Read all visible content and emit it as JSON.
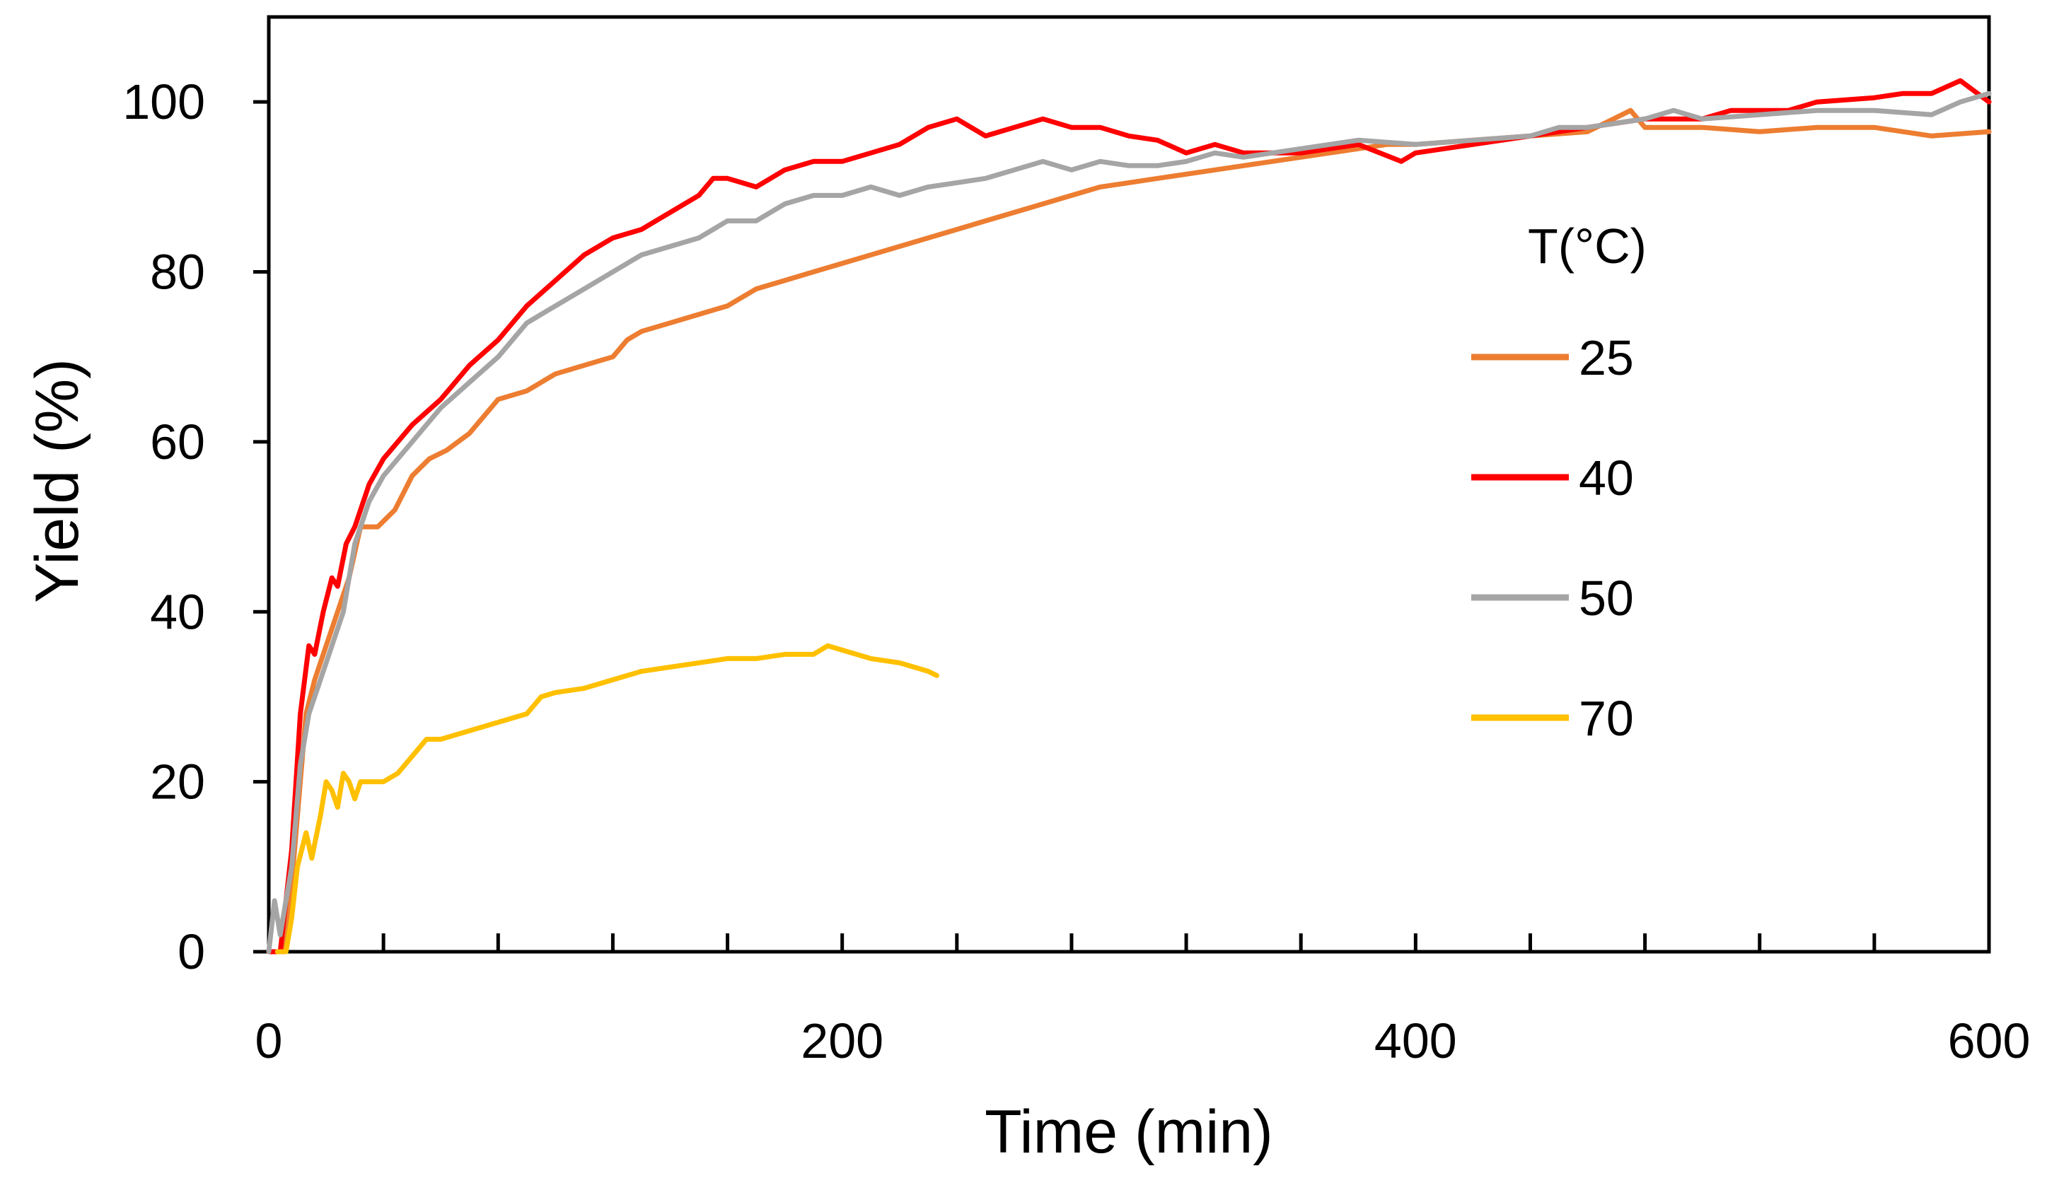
{
  "chart_data": {
    "type": "line",
    "title": "",
    "xlabel": "Time (min)",
    "ylabel": "Yield (%)",
    "xlim": [
      0,
      600
    ],
    "ylim": [
      0,
      110
    ],
    "x_major_ticks": [
      0,
      200,
      400,
      600
    ],
    "x_minor_step": 40,
    "y_ticks": [
      0,
      20,
      40,
      60,
      80,
      100
    ],
    "grid": false,
    "legend": {
      "title": "T(°C)",
      "placement": "right"
    },
    "series": [
      {
        "name": "25",
        "color": "#ED7D31",
        "points": [
          [
            0,
            0
          ],
          [
            5,
            0
          ],
          [
            8,
            8
          ],
          [
            10,
            16
          ],
          [
            13,
            28
          ],
          [
            16,
            32
          ],
          [
            20,
            36
          ],
          [
            24,
            40
          ],
          [
            28,
            44
          ],
          [
            32,
            50
          ],
          [
            38,
            50
          ],
          [
            44,
            52
          ],
          [
            50,
            56
          ],
          [
            56,
            58
          ],
          [
            62,
            59
          ],
          [
            70,
            61
          ],
          [
            80,
            65
          ],
          [
            90,
            66
          ],
          [
            100,
            68
          ],
          [
            110,
            69
          ],
          [
            120,
            70
          ],
          [
            125,
            72
          ],
          [
            130,
            73
          ],
          [
            140,
            74
          ],
          [
            150,
            75
          ],
          [
            160,
            76
          ],
          [
            170,
            78
          ],
          [
            180,
            79
          ],
          [
            190,
            80
          ],
          [
            200,
            81
          ],
          [
            210,
            82
          ],
          [
            220,
            83
          ],
          [
            230,
            84
          ],
          [
            240,
            85
          ],
          [
            250,
            86
          ],
          [
            260,
            87
          ],
          [
            270,
            88
          ],
          [
            280,
            89
          ],
          [
            290,
            90
          ],
          [
            300,
            90.5
          ],
          [
            310,
            91
          ],
          [
            320,
            91.5
          ],
          [
            330,
            92
          ],
          [
            340,
            92.5
          ],
          [
            350,
            93
          ],
          [
            360,
            93.5
          ],
          [
            370,
            94
          ],
          [
            380,
            94.5
          ],
          [
            390,
            95
          ],
          [
            400,
            95
          ],
          [
            420,
            95.5
          ],
          [
            440,
            96
          ],
          [
            460,
            96.5
          ],
          [
            475,
            99
          ],
          [
            480,
            97
          ],
          [
            500,
            97
          ],
          [
            520,
            96.5
          ],
          [
            540,
            97
          ],
          [
            560,
            97
          ],
          [
            580,
            96
          ],
          [
            600,
            96.5
          ]
        ]
      },
      {
        "name": "40",
        "color": "#FF0000",
        "points": [
          [
            0,
            0
          ],
          [
            4,
            0
          ],
          [
            8,
            12
          ],
          [
            11,
            28
          ],
          [
            14,
            36
          ],
          [
            16,
            35
          ],
          [
            19,
            40
          ],
          [
            22,
            44
          ],
          [
            24,
            43
          ],
          [
            27,
            48
          ],
          [
            30,
            50
          ],
          [
            35,
            55
          ],
          [
            40,
            58
          ],
          [
            50,
            62
          ],
          [
            60,
            65
          ],
          [
            70,
            69
          ],
          [
            80,
            72
          ],
          [
            90,
            76
          ],
          [
            100,
            79
          ],
          [
            110,
            82
          ],
          [
            120,
            84
          ],
          [
            130,
            85
          ],
          [
            140,
            87
          ],
          [
            150,
            89
          ],
          [
            155,
            91
          ],
          [
            160,
            91
          ],
          [
            170,
            90
          ],
          [
            180,
            92
          ],
          [
            190,
            93
          ],
          [
            200,
            93
          ],
          [
            210,
            94
          ],
          [
            220,
            95
          ],
          [
            230,
            97
          ],
          [
            240,
            98
          ],
          [
            250,
            96
          ],
          [
            260,
            97
          ],
          [
            270,
            98
          ],
          [
            280,
            97
          ],
          [
            290,
            97
          ],
          [
            300,
            96
          ],
          [
            310,
            95.5
          ],
          [
            320,
            94
          ],
          [
            330,
            95
          ],
          [
            340,
            94
          ],
          [
            350,
            94
          ],
          [
            360,
            94
          ],
          [
            380,
            95
          ],
          [
            395,
            93
          ],
          [
            400,
            94
          ],
          [
            420,
            95
          ],
          [
            440,
            96
          ],
          [
            460,
            97
          ],
          [
            480,
            98
          ],
          [
            500,
            98
          ],
          [
            510,
            99
          ],
          [
            530,
            99
          ],
          [
            540,
            100
          ],
          [
            560,
            100.5
          ],
          [
            570,
            101
          ],
          [
            580,
            101
          ],
          [
            590,
            102.5
          ],
          [
            600,
            100
          ]
        ]
      },
      {
        "name": "50",
        "color": "#A5A5A5",
        "points": [
          [
            0,
            0
          ],
          [
            2,
            6
          ],
          [
            4,
            2
          ],
          [
            8,
            10
          ],
          [
            11,
            22
          ],
          [
            14,
            28
          ],
          [
            18,
            32
          ],
          [
            22,
            36
          ],
          [
            26,
            40
          ],
          [
            30,
            48
          ],
          [
            35,
            53
          ],
          [
            40,
            56
          ],
          [
            50,
            60
          ],
          [
            60,
            64
          ],
          [
            70,
            67
          ],
          [
            80,
            70
          ],
          [
            90,
            74
          ],
          [
            100,
            76
          ],
          [
            110,
            78
          ],
          [
            120,
            80
          ],
          [
            130,
            82
          ],
          [
            140,
            83
          ],
          [
            150,
            84
          ],
          [
            160,
            86
          ],
          [
            170,
            86
          ],
          [
            180,
            88
          ],
          [
            190,
            89
          ],
          [
            200,
            89
          ],
          [
            210,
            90
          ],
          [
            220,
            89
          ],
          [
            230,
            90
          ],
          [
            240,
            90.5
          ],
          [
            250,
            91
          ],
          [
            260,
            92
          ],
          [
            270,
            93
          ],
          [
            280,
            92
          ],
          [
            290,
            93
          ],
          [
            300,
            92.5
          ],
          [
            310,
            92.5
          ],
          [
            320,
            93
          ],
          [
            330,
            94
          ],
          [
            340,
            93.5
          ],
          [
            350,
            94
          ],
          [
            360,
            94.5
          ],
          [
            380,
            95.5
          ],
          [
            400,
            95
          ],
          [
            420,
            95.5
          ],
          [
            440,
            96
          ],
          [
            450,
            97
          ],
          [
            460,
            97
          ],
          [
            480,
            98
          ],
          [
            490,
            99
          ],
          [
            500,
            98
          ],
          [
            520,
            98.5
          ],
          [
            540,
            99
          ],
          [
            560,
            99
          ],
          [
            580,
            98.5
          ],
          [
            590,
            100
          ],
          [
            600,
            101
          ]
        ]
      },
      {
        "name": "70",
        "color": "#FFC000",
        "points": [
          [
            3,
            0
          ],
          [
            6,
            0
          ],
          [
            8,
            4
          ],
          [
            10,
            10
          ],
          [
            13,
            14
          ],
          [
            15,
            11
          ],
          [
            18,
            16
          ],
          [
            20,
            20
          ],
          [
            22,
            19
          ],
          [
            24,
            17
          ],
          [
            26,
            21
          ],
          [
            28,
            20
          ],
          [
            30,
            18
          ],
          [
            32,
            20
          ],
          [
            35,
            20
          ],
          [
            40,
            20
          ],
          [
            45,
            21
          ],
          [
            50,
            23
          ],
          [
            55,
            25
          ],
          [
            60,
            25
          ],
          [
            70,
            26
          ],
          [
            80,
            27
          ],
          [
            90,
            28
          ],
          [
            95,
            30
          ],
          [
            100,
            30.5
          ],
          [
            110,
            31
          ],
          [
            120,
            32
          ],
          [
            125,
            32.5
          ],
          [
            130,
            33
          ],
          [
            140,
            33.5
          ],
          [
            150,
            34
          ],
          [
            160,
            34.5
          ],
          [
            170,
            34.5
          ],
          [
            180,
            35
          ],
          [
            190,
            35
          ],
          [
            195,
            36
          ],
          [
            200,
            35.5
          ],
          [
            210,
            34.5
          ],
          [
            220,
            34
          ],
          [
            230,
            33
          ],
          [
            233,
            32.5
          ]
        ]
      }
    ]
  }
}
